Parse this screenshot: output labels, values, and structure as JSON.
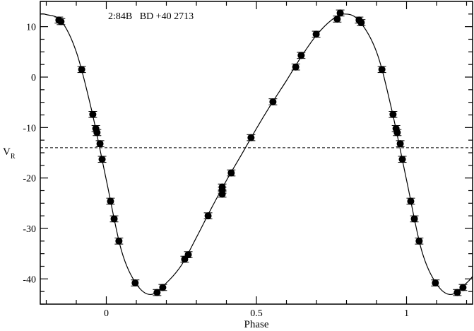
{
  "chart_data": {
    "type": "scatter",
    "title": "2:84B   BD +40 2713",
    "xlabel": "Phase",
    "ylabel_main": "V",
    "ylabel_sub": "R",
    "xlim": [
      -0.22,
      1.22
    ],
    "ylim": [
      -45,
      15
    ],
    "x_ticks": [
      0,
      0.5,
      1
    ],
    "x_tick_labels": [
      "0",
      "0.5",
      "1"
    ],
    "x_minor_step": 0.1,
    "y_ticks": [
      -40,
      -30,
      -20,
      -10,
      0,
      10
    ],
    "y_tick_labels": [
      "-40",
      "-30",
      "-20",
      "-10",
      "0",
      "10"
    ],
    "y_minor_step": 2.5,
    "grid": false,
    "reference_line": {
      "y": -14,
      "style": "dashed"
    },
    "marker_color": "#000000",
    "error": 0.6,
    "points": [
      [
        -0.158,
        11.3
      ],
      [
        -0.151,
        11.0
      ],
      [
        -0.082,
        1.5
      ],
      [
        -0.045,
        -7.4
      ],
      [
        -0.035,
        -10.2
      ],
      [
        -0.031,
        -11.0
      ],
      [
        -0.021,
        -13.2
      ],
      [
        -0.014,
        -16.3
      ],
      [
        0.014,
        -24.6
      ],
      [
        0.026,
        -28.1
      ],
      [
        0.042,
        -32.5
      ],
      [
        0.096,
        -40.8
      ],
      [
        0.169,
        -42.7
      ],
      [
        0.188,
        -41.7
      ],
      [
        0.261,
        -36.1
      ],
      [
        0.273,
        -35.2
      ],
      [
        0.339,
        -27.5
      ],
      [
        0.386,
        -21.8
      ],
      [
        0.386,
        -22.4
      ],
      [
        0.386,
        -23.2
      ],
      [
        0.416,
        -19.0
      ],
      [
        0.482,
        -12.0
      ],
      [
        0.555,
        -4.9
      ],
      [
        0.631,
        2.0
      ],
      [
        0.649,
        4.3
      ],
      [
        0.699,
        8.5
      ],
      [
        0.769,
        11.5
      ],
      [
        0.779,
        12.7
      ],
      [
        0.842,
        11.3
      ],
      [
        0.849,
        10.8
      ],
      [
        0.918,
        1.5
      ],
      [
        0.955,
        -7.4
      ],
      [
        0.965,
        -10.2
      ],
      [
        0.969,
        -11.0
      ],
      [
        0.979,
        -13.2
      ],
      [
        0.986,
        -16.3
      ],
      [
        1.014,
        -24.6
      ],
      [
        1.026,
        -28.1
      ],
      [
        1.042,
        -32.5
      ],
      [
        1.096,
        -40.8
      ],
      [
        1.169,
        -42.7
      ],
      [
        1.188,
        -41.7
      ]
    ],
    "fit_curve": [
      [
        -0.22,
        12.5
      ],
      [
        -0.2,
        12.4
      ],
      [
        -0.15,
        11.1
      ],
      [
        -0.1,
        5.0
      ],
      [
        -0.05,
        -6.3
      ],
      [
        0.0,
        -20.4
      ],
      [
        0.05,
        -34.3
      ],
      [
        0.1,
        -41.0
      ],
      [
        0.148,
        -43.1
      ],
      [
        0.2,
        -40.8
      ],
      [
        0.25,
        -37.3
      ],
      [
        0.3,
        -31.8
      ],
      [
        0.35,
        -26.0
      ],
      [
        0.4,
        -20.5
      ],
      [
        0.45,
        -15.4
      ],
      [
        0.5,
        -10.2
      ],
      [
        0.55,
        -5.3
      ],
      [
        0.6,
        -0.7
      ],
      [
        0.65,
        4.1
      ],
      [
        0.7,
        8.3
      ],
      [
        0.75,
        11.3
      ],
      [
        0.79,
        12.5
      ],
      [
        0.84,
        11.3
      ],
      [
        0.9,
        5.0
      ],
      [
        0.95,
        -6.3
      ],
      [
        1.0,
        -20.4
      ],
      [
        1.05,
        -34.3
      ],
      [
        1.1,
        -41.0
      ],
      [
        1.148,
        -43.1
      ],
      [
        1.2,
        -40.8
      ],
      [
        1.22,
        -39.5
      ]
    ]
  }
}
